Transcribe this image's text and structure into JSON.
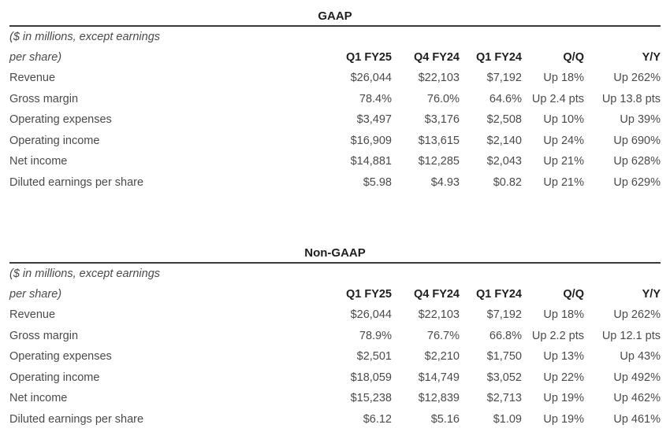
{
  "colors": {
    "background": "#ffffff",
    "body_text": "#4a4a4a",
    "heading_text": "#1e1e1e",
    "rule": "#3b3b3b"
  },
  "sections": [
    {
      "title": "GAAP",
      "note_line1": "($ in millions, except earnings",
      "note_line2": "per share)",
      "columns": [
        "Q1 FY25",
        "Q4 FY24",
        "Q1 FY24",
        "Q/Q",
        "Y/Y"
      ],
      "rows": [
        {
          "label": "Revenue",
          "values": [
            "$26,044",
            "$22,103",
            "$7,192",
            "Up 18%",
            "Up 262%"
          ]
        },
        {
          "label": "Gross margin",
          "values": [
            "78.4%",
            "76.0%",
            "64.6%",
            "Up 2.4 pts",
            "Up 13.8 pts"
          ]
        },
        {
          "label": "Operating expenses",
          "values": [
            "$3,497",
            "$3,176",
            "$2,508",
            "Up 10%",
            "Up 39%"
          ]
        },
        {
          "label": "Operating income",
          "values": [
            "$16,909",
            "$13,615",
            "$2,140",
            "Up 24%",
            "Up 690%"
          ]
        },
        {
          "label": "Net income",
          "values": [
            "$14,881",
            "$12,285",
            "$2,043",
            "Up 21%",
            "Up 628%"
          ]
        },
        {
          "label": "Diluted earnings per share",
          "values": [
            "$5.98",
            "$4.93",
            "$0.82",
            "Up 21%",
            "Up 629%"
          ]
        }
      ]
    },
    {
      "title": "Non-GAAP",
      "note_line1": "($ in millions, except earnings",
      "note_line2": "per share)",
      "columns": [
        "Q1 FY25",
        "Q4 FY24",
        "Q1 FY24",
        "Q/Q",
        "Y/Y"
      ],
      "rows": [
        {
          "label": "Revenue",
          "values": [
            "$26,044",
            "$22,103",
            "$7,192",
            "Up 18%",
            "Up 262%"
          ]
        },
        {
          "label": "Gross margin",
          "values": [
            "78.9%",
            "76.7%",
            "66.8%",
            "Up 2.2 pts",
            "Up 12.1 pts"
          ]
        },
        {
          "label": "Operating expenses",
          "values": [
            "$2,501",
            "$2,210",
            "$1,750",
            "Up 13%",
            "Up 43%"
          ]
        },
        {
          "label": "Operating income",
          "values": [
            "$18,059",
            "$14,749",
            "$3,052",
            "Up 22%",
            "Up 492%"
          ]
        },
        {
          "label": "Net income",
          "values": [
            "$15,238",
            "$12,839",
            "$2,713",
            "Up 19%",
            "Up 462%"
          ]
        },
        {
          "label": "Diluted earnings per share",
          "values": [
            "$6.12",
            "$5.16",
            "$1.09",
            "Up 19%",
            "Up 461%"
          ]
        }
      ]
    }
  ]
}
